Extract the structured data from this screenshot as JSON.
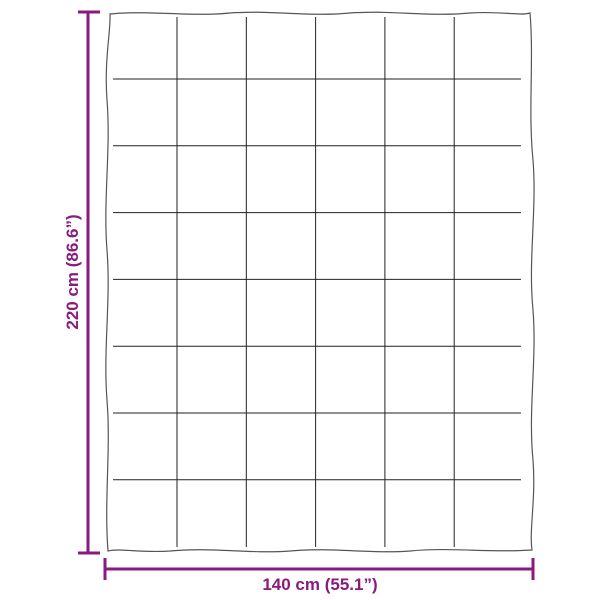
{
  "dimensions": {
    "height_label": "220 cm (86.6”)",
    "width_label": "140 cm (55.1”)"
  },
  "colors": {
    "dimension": "#8a1a7d",
    "quilt_outline": "#555555",
    "stitch_lines": "#222222"
  },
  "quilt": {
    "columns": 6,
    "rows": 8
  }
}
